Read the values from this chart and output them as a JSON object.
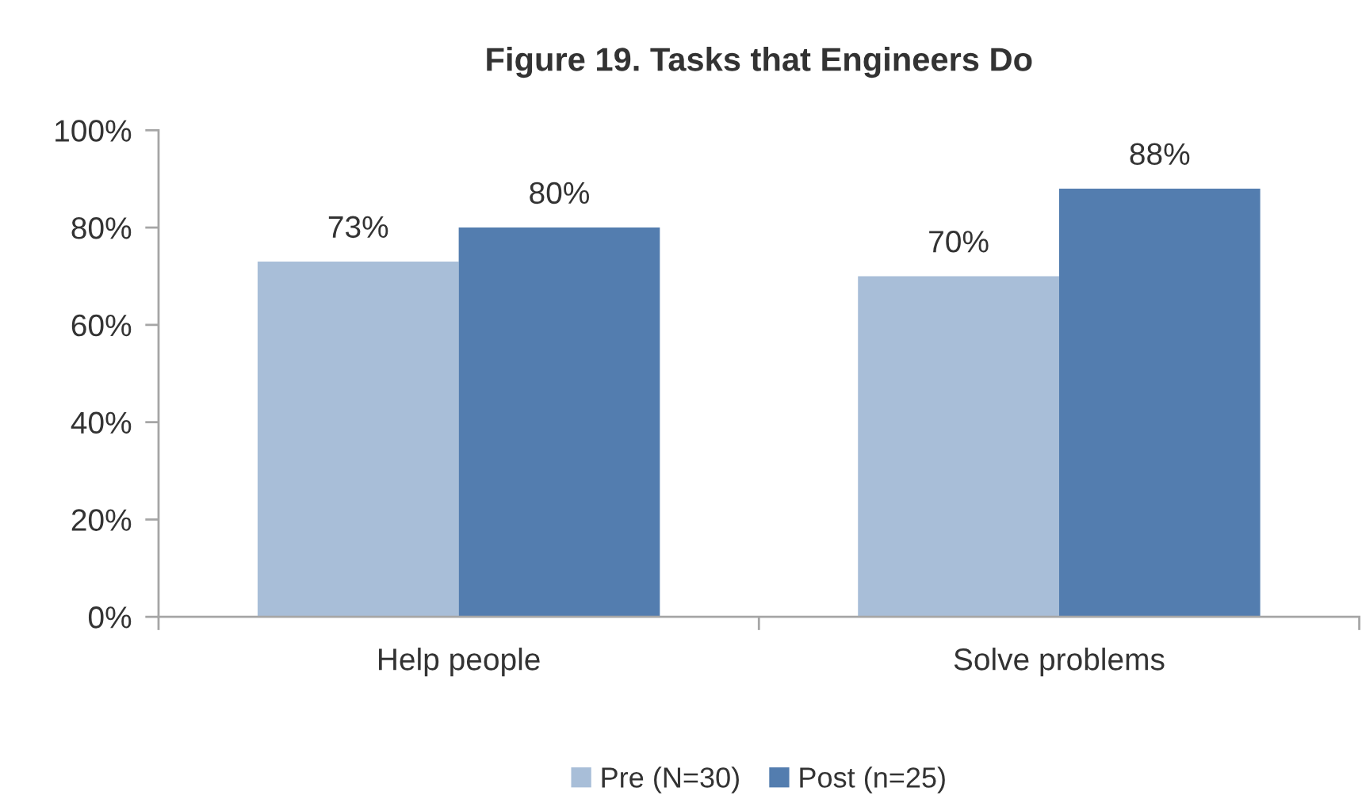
{
  "chart_data": {
    "type": "bar",
    "title": "Figure 19. Tasks that Engineers Do",
    "categories": [
      "Help people",
      "Solve problems"
    ],
    "series": [
      {
        "name": "Pre (N=30)",
        "color": "#a8bed8",
        "values": [
          73,
          70
        ],
        "value_labels": [
          "73%",
          "70%"
        ]
      },
      {
        "name": "Post (n=25)",
        "color": "#537daf",
        "values": [
          80,
          88
        ],
        "value_labels": [
          "80%",
          "88%"
        ]
      }
    ],
    "ylim": [
      0,
      100
    ],
    "yticks": [
      {
        "value": 0,
        "label": "0%"
      },
      {
        "value": 20,
        "label": "20%"
      },
      {
        "value": 40,
        "label": "40%"
      },
      {
        "value": 60,
        "label": "60%"
      },
      {
        "value": 80,
        "label": "80%"
      },
      {
        "value": 100,
        "label": "100%"
      }
    ],
    "grid": false,
    "legend": "bottom"
  }
}
